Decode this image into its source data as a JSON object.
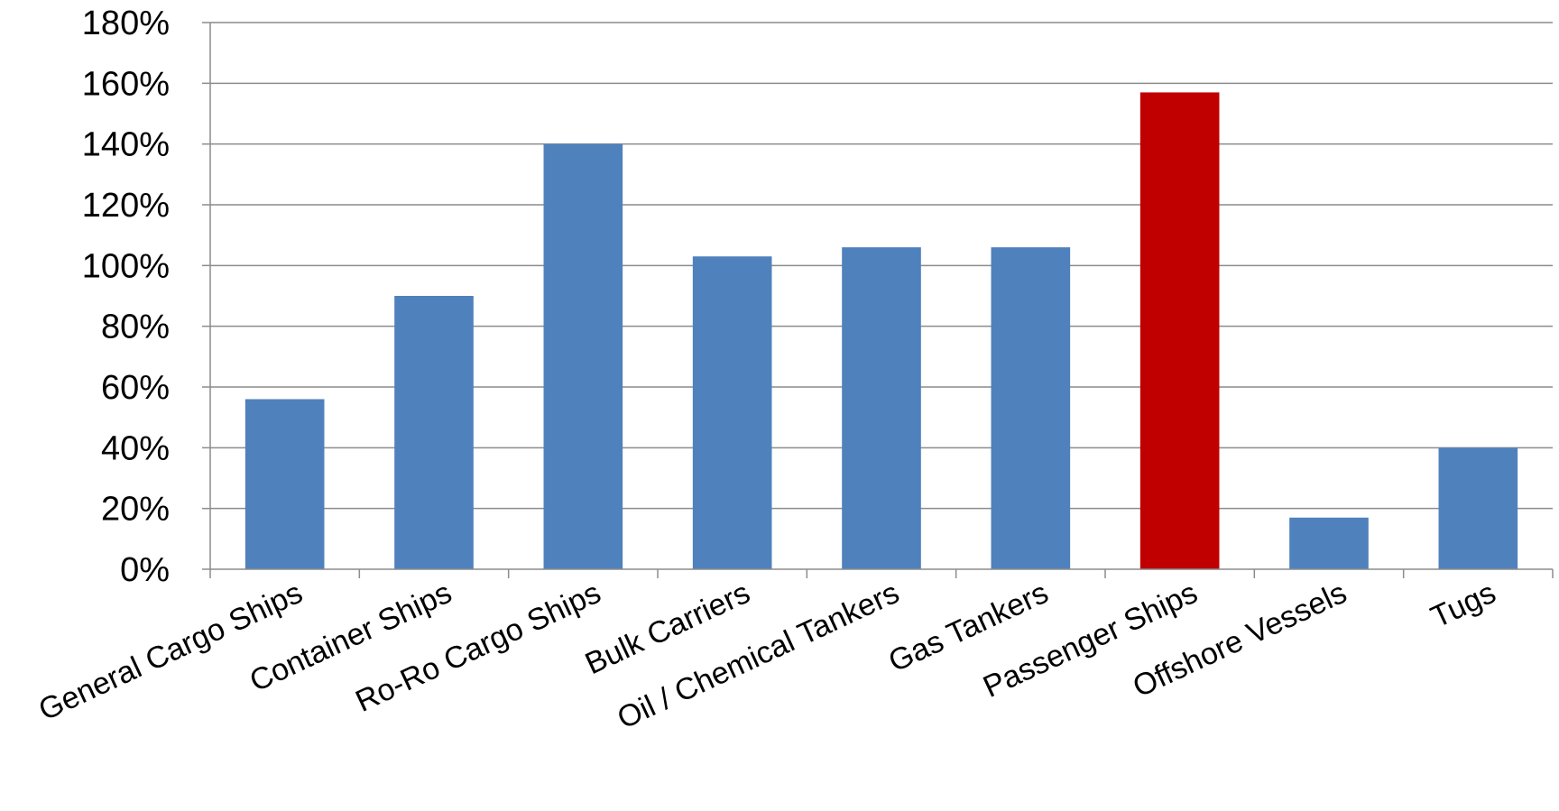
{
  "chart_data": {
    "type": "bar",
    "title": "",
    "xlabel": "",
    "ylabel": "",
    "categories": [
      "General Cargo Ships",
      "Container Ships",
      "Ro-Ro Cargo Ships",
      "Bulk Carriers",
      "Oil / Chemical Tankers",
      "Gas Tankers",
      "Passenger Ships",
      "Offshore Vessels",
      "Tugs"
    ],
    "values": [
      56,
      90,
      140,
      103,
      106,
      106,
      157,
      17,
      40
    ],
    "value_unit": "%",
    "ylim": [
      0,
      180
    ],
    "yticks": [
      0,
      20,
      40,
      60,
      80,
      100,
      120,
      140,
      160,
      180
    ],
    "ytick_labels": [
      "0%",
      "20%",
      "40%",
      "60%",
      "80%",
      "100%",
      "120%",
      "140%",
      "160%",
      "180%"
    ],
    "grid": true,
    "legend": "none",
    "bar_color": "#4f81bd",
    "highlight_color": "#c00000",
    "highlight_category": "Passenger Ships"
  }
}
